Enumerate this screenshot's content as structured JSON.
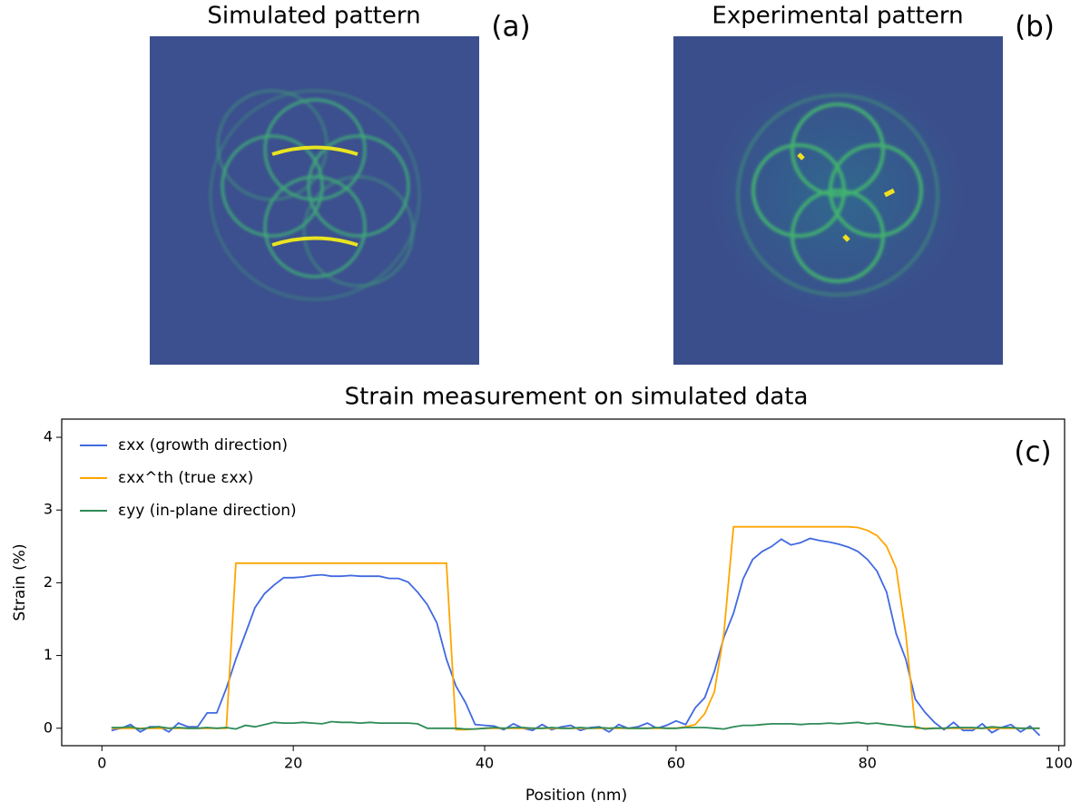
{
  "panels": [
    {
      "title": "Simulated pattern",
      "label": "(a)"
    },
    {
      "title": "Experimental pattern",
      "label": "(b)"
    }
  ],
  "chart_data": {
    "type": "line",
    "title": "Strain measurement on simulated data",
    "panel_label": "(c)",
    "x_label": "Position (nm)",
    "y_label": "Strain (%)",
    "xlim": [
      -4.2,
      100.6
    ],
    "ylim": [
      -0.24,
      4.25
    ],
    "xticks": [
      0,
      20,
      40,
      60,
      80,
      100
    ],
    "yticks": [
      0,
      1,
      2,
      3,
      4
    ],
    "legend": "upper left",
    "x": [
      1,
      2,
      3,
      4,
      5,
      6,
      7,
      8,
      9,
      10,
      11,
      12,
      13,
      14,
      15,
      16,
      17,
      18,
      19,
      20,
      21,
      22,
      23,
      24,
      25,
      26,
      27,
      28,
      29,
      30,
      31,
      32,
      33,
      34,
      35,
      36,
      37,
      38,
      39,
      40,
      41,
      42,
      43,
      44,
      45,
      46,
      47,
      48,
      49,
      50,
      51,
      52,
      53,
      54,
      55,
      56,
      57,
      58,
      59,
      60,
      61,
      62,
      63,
      64,
      65,
      66,
      67,
      68,
      69,
      70,
      71,
      72,
      73,
      74,
      75,
      76,
      77,
      78,
      79,
      80,
      81,
      82,
      83,
      84,
      85,
      86,
      87,
      88,
      89,
      90,
      91,
      92,
      93,
      94,
      95,
      96,
      97,
      98
    ],
    "series": [
      {
        "name": "εxx (growth direction)",
        "color": "#4169e1",
        "values": [
          -0.03,
          0,
          0.05,
          -0.05,
          0.02,
          0.02,
          -0.05,
          0.07,
          0.02,
          0.02,
          0.21,
          0.21,
          0.55,
          0.95,
          1.3,
          1.66,
          1.85,
          1.97,
          2.07,
          2.07,
          2.08,
          2.1,
          2.11,
          2.09,
          2.09,
          2.1,
          2.09,
          2.09,
          2.09,
          2.06,
          2.06,
          2.01,
          1.87,
          1.7,
          1.45,
          0.95,
          0.58,
          0.35,
          0.05,
          0.04,
          0.03,
          -0.02,
          0.06,
          0,
          -0.03,
          0.05,
          -0.02,
          0.02,
          0.04,
          -0.03,
          0.01,
          0.02,
          -0.05,
          0.05,
          0,
          0.02,
          0.07,
          0,
          0.04,
          0.1,
          0.05,
          0.28,
          0.42,
          0.78,
          1.25,
          1.58,
          2.05,
          2.32,
          2.43,
          2.5,
          2.6,
          2.52,
          2.55,
          2.61,
          2.58,
          2.56,
          2.53,
          2.49,
          2.43,
          2.32,
          2.16,
          1.87,
          1.3,
          0.95,
          0.4,
          0.22,
          0.08,
          -0.02,
          0.08,
          -0.03,
          -0.03,
          0.06,
          -0.06,
          0.01,
          0.05,
          -0.05,
          0.03,
          -0.1
        ]
      },
      {
        "name": "εxx^th (true εxx)",
        "color": "#ffa500",
        "values": [
          0,
          0,
          0,
          0,
          0,
          0,
          0,
          0,
          0,
          0,
          0,
          0,
          0,
          2.27,
          2.27,
          2.27,
          2.27,
          2.27,
          2.27,
          2.27,
          2.27,
          2.27,
          2.27,
          2.27,
          2.27,
          2.27,
          2.27,
          2.27,
          2.27,
          2.27,
          2.27,
          2.27,
          2.27,
          2.27,
          2.27,
          2.27,
          -0.02,
          -0.02,
          -0.01,
          0,
          0,
          0,
          0,
          0,
          0,
          0,
          0,
          0,
          0,
          0,
          0,
          0,
          0,
          0,
          0,
          0,
          0,
          0,
          0,
          0,
          0.02,
          0.05,
          0.2,
          0.5,
          1.3,
          2.77,
          2.77,
          2.77,
          2.77,
          2.77,
          2.77,
          2.77,
          2.77,
          2.77,
          2.77,
          2.77,
          2.77,
          2.77,
          2.76,
          2.72,
          2.65,
          2.5,
          2.2,
          1.3,
          0,
          0,
          0,
          0,
          0,
          0,
          0,
          0,
          0,
          0,
          0,
          0,
          0,
          0
        ]
      },
      {
        "name": "εyy (in-plane direction)",
        "color": "#2e8b57",
        "values": [
          0.01,
          0.01,
          0.02,
          -0.01,
          0.01,
          0.02,
          0.0,
          0.01,
          0.0,
          0.0,
          0.01,
          0.0,
          0.01,
          -0.01,
          0.04,
          0.02,
          0.05,
          0.08,
          0.07,
          0.07,
          0.08,
          0.07,
          0.06,
          0.09,
          0.08,
          0.08,
          0.07,
          0.08,
          0.07,
          0.07,
          0.07,
          0.07,
          0.06,
          0.0,
          0.0,
          0.0,
          0.0,
          -0.01,
          -0.01,
          0.0,
          0.01,
          0.0,
          0.01,
          0.01,
          0.0,
          0.0,
          0.01,
          0.0,
          0.0,
          0.01,
          0.0,
          0.01,
          0.0,
          0.01,
          0.0,
          0.0,
          0.0,
          0.01,
          0.0,
          0.0,
          0.01,
          0.01,
          0.01,
          0.0,
          -0.01,
          0.02,
          0.04,
          0.04,
          0.05,
          0.06,
          0.06,
          0.06,
          0.05,
          0.06,
          0.06,
          0.07,
          0.06,
          0.07,
          0.08,
          0.06,
          0.07,
          0.05,
          0.04,
          0.02,
          0.02,
          -0.01,
          0.0,
          0.0,
          0.01,
          0.01,
          0.01,
          0.0,
          0.02,
          0.01,
          0.01,
          0.0,
          0.0,
          0.0
        ]
      }
    ]
  }
}
